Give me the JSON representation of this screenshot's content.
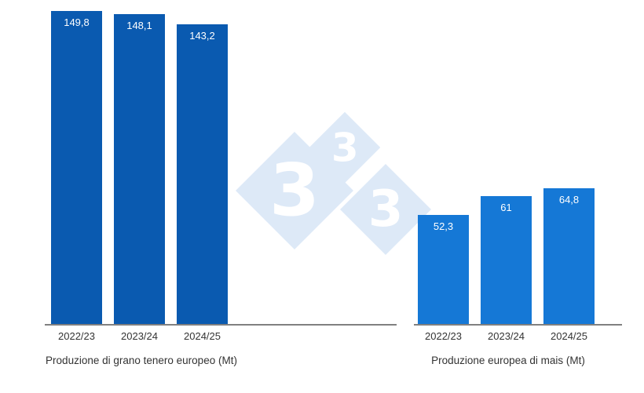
{
  "watermark": {
    "glyph": "3",
    "diamond_color": "#dde9f7",
    "text_color": "#ffffff"
  },
  "chart_data": [
    {
      "type": "bar",
      "title": "Produzione di grano tenero europeo (Mt)",
      "categories": [
        "2022/23",
        "2023/24",
        "2024/25"
      ],
      "values": [
        149.8,
        148.1,
        143.2
      ],
      "value_labels": [
        "149,8",
        "148,1",
        "143,2"
      ],
      "bar_color": "#0a5ab0",
      "label_color": "#ffffff",
      "xlabel": "",
      "ylabel": "",
      "ylim": [
        0,
        150
      ],
      "grid": false,
      "y_axis_visible": false,
      "legend": "none"
    },
    {
      "type": "bar",
      "title": "Produzione europea di mais (Mt)",
      "categories": [
        "2022/23",
        "2023/24",
        "2024/25"
      ],
      "values": [
        52.3,
        61,
        64.8
      ],
      "value_labels": [
        "52,3",
        "61",
        "64,8"
      ],
      "bar_color": "#1578d6",
      "label_color": "#ffffff",
      "xlabel": "",
      "ylabel": "",
      "ylim": [
        0,
        150
      ],
      "grid": false,
      "y_axis_visible": false,
      "legend": "none"
    }
  ]
}
